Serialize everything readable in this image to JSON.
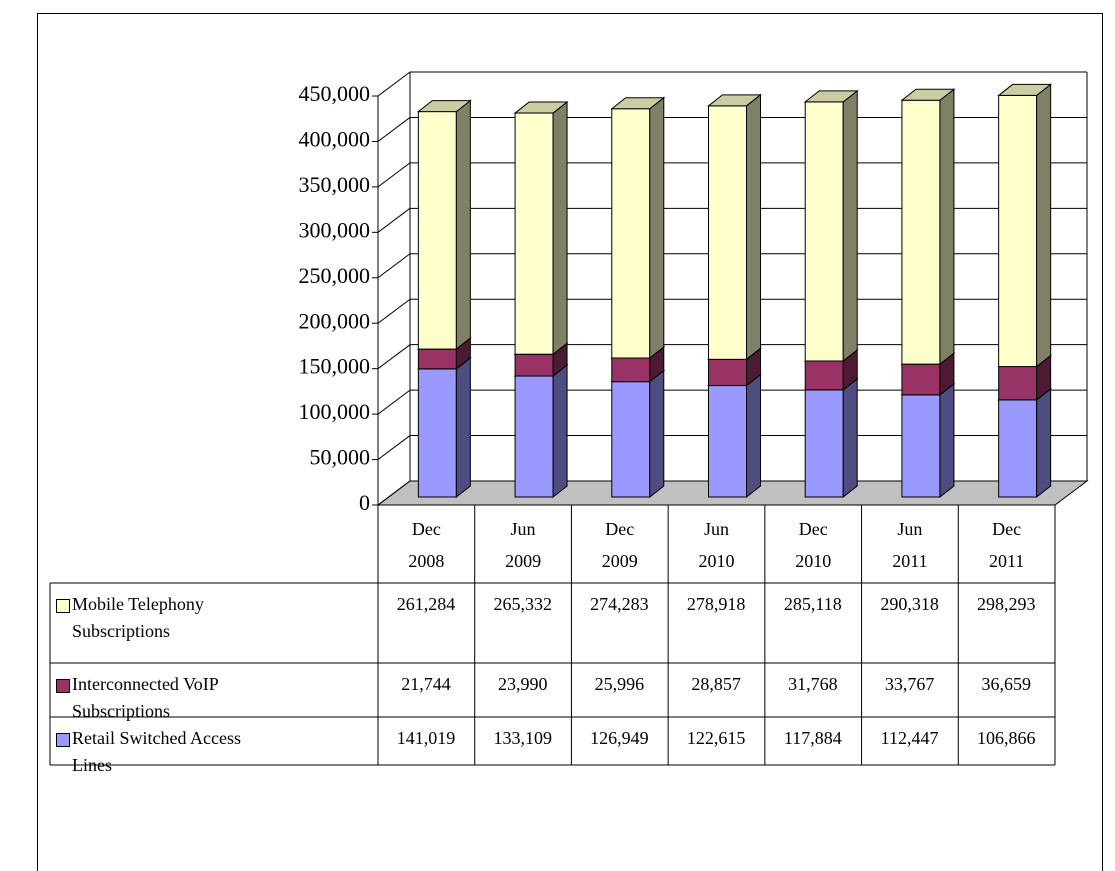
{
  "chart_data": {
    "type": "bar",
    "stacked": true,
    "categories": [
      "Dec 2008",
      "Jun 2009",
      "Dec 2009",
      "Jun 2010",
      "Dec 2010",
      "Jun 2011",
      "Dec 2011"
    ],
    "series": [
      {
        "name": "Retail Switched Access Lines",
        "color": "#9999ff",
        "values": [
          141019,
          133109,
          126949,
          122615,
          117884,
          112447,
          106866
        ],
        "value_labels": [
          "141,019",
          "133,109",
          "126,949",
          "122,615",
          "117,884",
          "112,447",
          "106,866"
        ]
      },
      {
        "name": "Interconnected VoIP Subscriptions",
        "color": "#993366",
        "values": [
          21744,
          23990,
          25996,
          28857,
          31768,
          33767,
          36659
        ],
        "value_labels": [
          "21,744",
          "23,990",
          "25,996",
          "28,857",
          "31,768",
          "33,767",
          "36,659"
        ]
      },
      {
        "name": "Mobile Telephony Subscriptions",
        "color": "#ffffcc",
        "values": [
          261284,
          265332,
          274283,
          278918,
          285118,
          290318,
          298293
        ],
        "value_labels": [
          "261,284",
          "265,332",
          "274,283",
          "278,918",
          "285,118",
          "290,318",
          "298,293"
        ]
      }
    ],
    "ylim": [
      0,
      450000
    ],
    "yticks": [
      0,
      {
        "value": 50000,
        "label": "50,000"
      },
      {
        "value": 100000,
        "label": "100,000"
      },
      {
        "value": 150000,
        "label": "150,000"
      },
      {
        "value": 200000,
        "label": "200,000"
      },
      {
        "value": 250000,
        "label": "250,000"
      },
      {
        "value": 300000,
        "label": "300,000"
      },
      {
        "value": 350000,
        "label": "350,000"
      },
      {
        "value": 400000,
        "label": "400,000"
      },
      {
        "value": 450000,
        "label": "450,000"
      }
    ],
    "grid": true
  }
}
